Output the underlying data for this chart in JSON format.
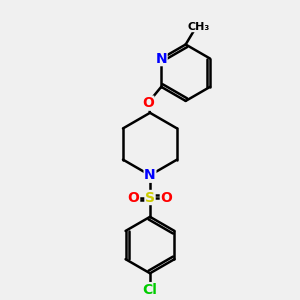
{
  "background_color": "#f0f0f0",
  "bond_color": "#000000",
  "bond_width": 1.8,
  "atom_colors": {
    "N": "#0000ff",
    "O": "#ff0000",
    "S": "#cccc00",
    "Cl": "#00cc00",
    "C": "#000000"
  },
  "font_size_atom": 9,
  "fig_width": 3.0,
  "fig_height": 3.0
}
